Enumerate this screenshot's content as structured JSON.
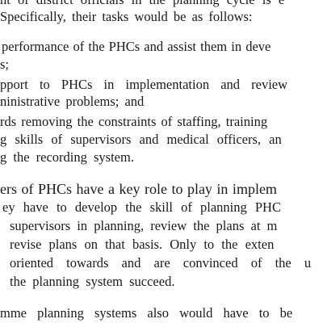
{
  "lines": [
    "nt of district officials in the planning cycle is e",
    "Specifically, their tasks would be as follows:",
    "performance of the PHCs and assist them in deve",
    "s;",
    "pport to PHCs in implementation and review",
    "ninistrative problems; and",
    "rds removing the constraints of staffing, training",
    "g skills of supervisors and medical officers, an",
    "g the recording system.",
    "ers of PHCs have a key role to play in implem",
    "ey have to develop the skill of planning PHC",
    "supervisors in planning, review the plans at m",
    "revise plans on that basis. Only to the exten",
    "oriented towards and are convinced of the u",
    "the planning system succeed.",
    "mme planning systems also would have to be"
  ]
}
